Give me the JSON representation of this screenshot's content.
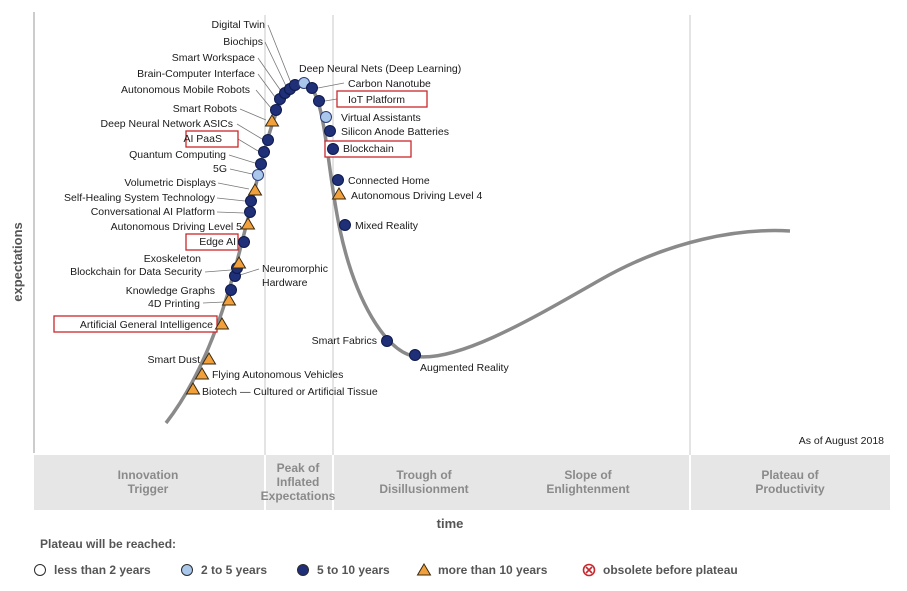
{
  "chart_data": {
    "type": "scatter",
    "xlabel": "time",
    "ylabel": "expectations",
    "as_of": "As of August 2018",
    "phases": [
      "Innovation Trigger",
      "Peak of Inflated Expectations",
      "Trough of Disillusionment",
      "Slope of Enlightenment",
      "Plateau of Productivity"
    ],
    "legend_title": "Plateau will be reached:",
    "legend": [
      {
        "key": "lt2",
        "label": "less than 2 years",
        "marker": "circle-white"
      },
      {
        "key": "2to5",
        "label": "2 to 5 years",
        "marker": "circle-lightblue"
      },
      {
        "key": "5to10",
        "label": "5 to 10 years",
        "marker": "circle-navy"
      },
      {
        "key": "gt10",
        "label": "more than 10 years",
        "marker": "triangle-orange"
      },
      {
        "key": "obsolete",
        "label": "obsolete before plateau",
        "marker": "x-circle-red"
      }
    ],
    "colors": {
      "navy": "#1f2f78",
      "lightblue": "#a9c7ea",
      "orange": "#f2a03b",
      "red": "#c8282d",
      "curve": "#8a8a8a"
    },
    "technologies": [
      {
        "name": "Biotech — Cultured or Artificial Tissue",
        "plateau": "gt10"
      },
      {
        "name": "Flying Autonomous Vehicles",
        "plateau": "gt10"
      },
      {
        "name": "Smart Dust",
        "plateau": "gt10"
      },
      {
        "name": "Artificial General Intelligence",
        "plateau": "gt10",
        "highlighted": true
      },
      {
        "name": "4D Printing",
        "plateau": "gt10"
      },
      {
        "name": "Knowledge Graphs",
        "plateau": "5to10"
      },
      {
        "name": "Neuromorphic Hardware",
        "plateau": "5to10"
      },
      {
        "name": "Blockchain for Data Security",
        "plateau": "5to10"
      },
      {
        "name": "Exoskeleton",
        "plateau": "gt10"
      },
      {
        "name": "Edge AI",
        "plateau": "5to10",
        "highlighted": true
      },
      {
        "name": "Autonomous Driving Level 5",
        "plateau": "gt10"
      },
      {
        "name": "Conversational AI Platform",
        "plateau": "5to10"
      },
      {
        "name": "Self-Healing System Technology",
        "plateau": "5to10"
      },
      {
        "name": "Volumetric Displays",
        "plateau": "gt10"
      },
      {
        "name": "5G",
        "plateau": "2to5"
      },
      {
        "name": "Quantum Computing",
        "plateau": "5to10"
      },
      {
        "name": "AI PaaS",
        "plateau": "5to10",
        "highlighted": true
      },
      {
        "name": "Deep Neural Network ASICs",
        "plateau": "5to10"
      },
      {
        "name": "Smart Robots",
        "plateau": "gt10"
      },
      {
        "name": "Autonomous Mobile Robots",
        "plateau": "5to10"
      },
      {
        "name": "Brain-Computer Interface",
        "plateau": "5to10"
      },
      {
        "name": "Smart Workspace",
        "plateau": "5to10"
      },
      {
        "name": "Biochips",
        "plateau": "5to10"
      },
      {
        "name": "Digital Twin",
        "plateau": "5to10"
      },
      {
        "name": "Deep Neural Nets (Deep Learning)",
        "plateau": "2to5"
      },
      {
        "name": "Carbon Nanotube",
        "plateau": "5to10"
      },
      {
        "name": "IoT Platform",
        "plateau": "5to10",
        "highlighted": true
      },
      {
        "name": "Virtual Assistants",
        "plateau": "2to5"
      },
      {
        "name": "Silicon Anode Batteries",
        "plateau": "5to10"
      },
      {
        "name": "Blockchain",
        "plateau": "5to10",
        "highlighted": true
      },
      {
        "name": "Connected Home",
        "plateau": "5to10"
      },
      {
        "name": "Autonomous Driving Level 4",
        "plateau": "gt10"
      },
      {
        "name": "Mixed Reality",
        "plateau": "5to10"
      },
      {
        "name": "Smart Fabrics",
        "plateau": "5to10"
      },
      {
        "name": "Augmented Reality",
        "plateau": "5to10"
      }
    ]
  }
}
